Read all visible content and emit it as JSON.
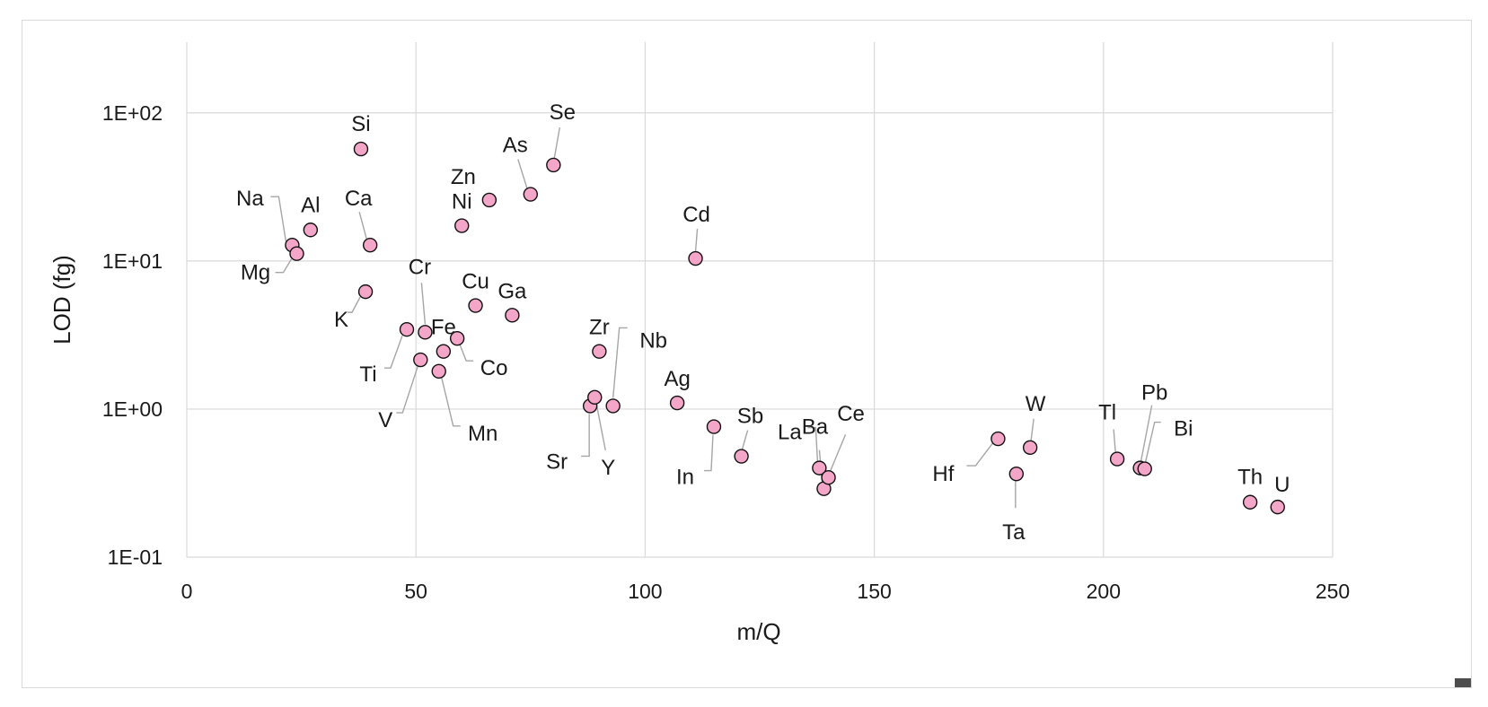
{
  "chart_data": {
    "type": "scatter",
    "xlabel": "m/Q",
    "ylabel": "LOD (fg)",
    "xlim": [
      0,
      250
    ],
    "ylim": [
      0.1,
      300
    ],
    "y_scale": "log",
    "x_ticks": [
      0,
      50,
      100,
      150,
      200,
      250
    ],
    "x_tick_labels": [
      "0",
      "50",
      "100",
      "150",
      "200",
      "250"
    ],
    "y_ticks": [
      0.1,
      1,
      10,
      100
    ],
    "y_tick_labels": [
      "1E-01",
      "1E+00",
      "1E+01",
      "1E+02"
    ],
    "grid": true,
    "legend": "none",
    "marker_color": "#f4a6c9",
    "marker_edge_color": "#111111",
    "points": [
      {
        "label": "Na",
        "x": 23,
        "y": 12.8
      },
      {
        "label": "Mg",
        "x": 24,
        "y": 11.2
      },
      {
        "label": "Al",
        "x": 27,
        "y": 16.2
      },
      {
        "label": "Si",
        "x": 38,
        "y": 57
      },
      {
        "label": "K",
        "x": 39,
        "y": 6.2
      },
      {
        "label": "Ca",
        "x": 40,
        "y": 12.8
      },
      {
        "label": "Ti",
        "x": 48,
        "y": 3.45
      },
      {
        "label": "V",
        "x": 51,
        "y": 2.15
      },
      {
        "label": "Cr",
        "x": 52,
        "y": 3.3
      },
      {
        "label": "Mn",
        "x": 55,
        "y": 1.8
      },
      {
        "label": "Fe",
        "x": 56,
        "y": 2.45
      },
      {
        "label": "Co",
        "x": 59,
        "y": 3.0
      },
      {
        "label": "Ni",
        "x": 60,
        "y": 17.3
      },
      {
        "label": "Cu",
        "x": 63,
        "y": 5.0
      },
      {
        "label": "Zn",
        "x": 66,
        "y": 25.8
      },
      {
        "label": "Ga",
        "x": 71,
        "y": 4.3
      },
      {
        "label": "As",
        "x": 75,
        "y": 28.2
      },
      {
        "label": "Se",
        "x": 80,
        "y": 44.4
      },
      {
        "label": "Sr",
        "x": 88,
        "y": 1.05
      },
      {
        "label": "Y",
        "x": 89,
        "y": 1.2
      },
      {
        "label": "Zr",
        "x": 90,
        "y": 2.45
      },
      {
        "label": "Nb",
        "x": 93,
        "y": 1.05
      },
      {
        "label": "Ag",
        "x": 107,
        "y": 1.1
      },
      {
        "label": "Cd",
        "x": 111,
        "y": 10.4
      },
      {
        "label": "In",
        "x": 115,
        "y": 0.76
      },
      {
        "label": "Sb",
        "x": 121,
        "y": 0.48
      },
      {
        "label": "La",
        "x": 138,
        "y": 0.4
      },
      {
        "label": "Ba",
        "x": 139,
        "y": 0.29
      },
      {
        "label": "Ce",
        "x": 140,
        "y": 0.345
      },
      {
        "label": "Hf",
        "x": 177,
        "y": 0.63
      },
      {
        "label": "Ta",
        "x": 181,
        "y": 0.365
      },
      {
        "label": "W",
        "x": 184,
        "y": 0.55
      },
      {
        "label": "Tl",
        "x": 203,
        "y": 0.46
      },
      {
        "label": "Pb",
        "x": 208,
        "y": 0.4
      },
      {
        "label": "Bi",
        "x": 209,
        "y": 0.395
      },
      {
        "label": "Th",
        "x": 232,
        "y": 0.235
      },
      {
        "label": "U",
        "x": 238,
        "y": 0.218
      }
    ]
  }
}
